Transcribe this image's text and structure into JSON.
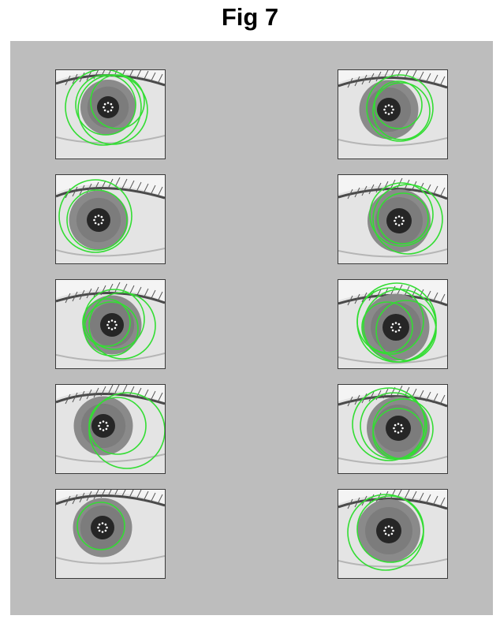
{
  "figure": {
    "title": "Fig 7"
  },
  "colors": {
    "panel_background": "#bdbdbd",
    "fit_circle": "#33dd33",
    "iris": "#8a8a8a",
    "pupil": "#262626",
    "sclera": "#e4e4e4"
  },
  "images": [
    {
      "id": "r1c1"
    },
    {
      "id": "r1c2"
    },
    {
      "id": "r2c1"
    },
    {
      "id": "r2c2"
    },
    {
      "id": "r3c1"
    },
    {
      "id": "r3c2"
    },
    {
      "id": "r4c1"
    },
    {
      "id": "r4c2"
    },
    {
      "id": "r5c1"
    },
    {
      "id": "r5c2"
    }
  ]
}
